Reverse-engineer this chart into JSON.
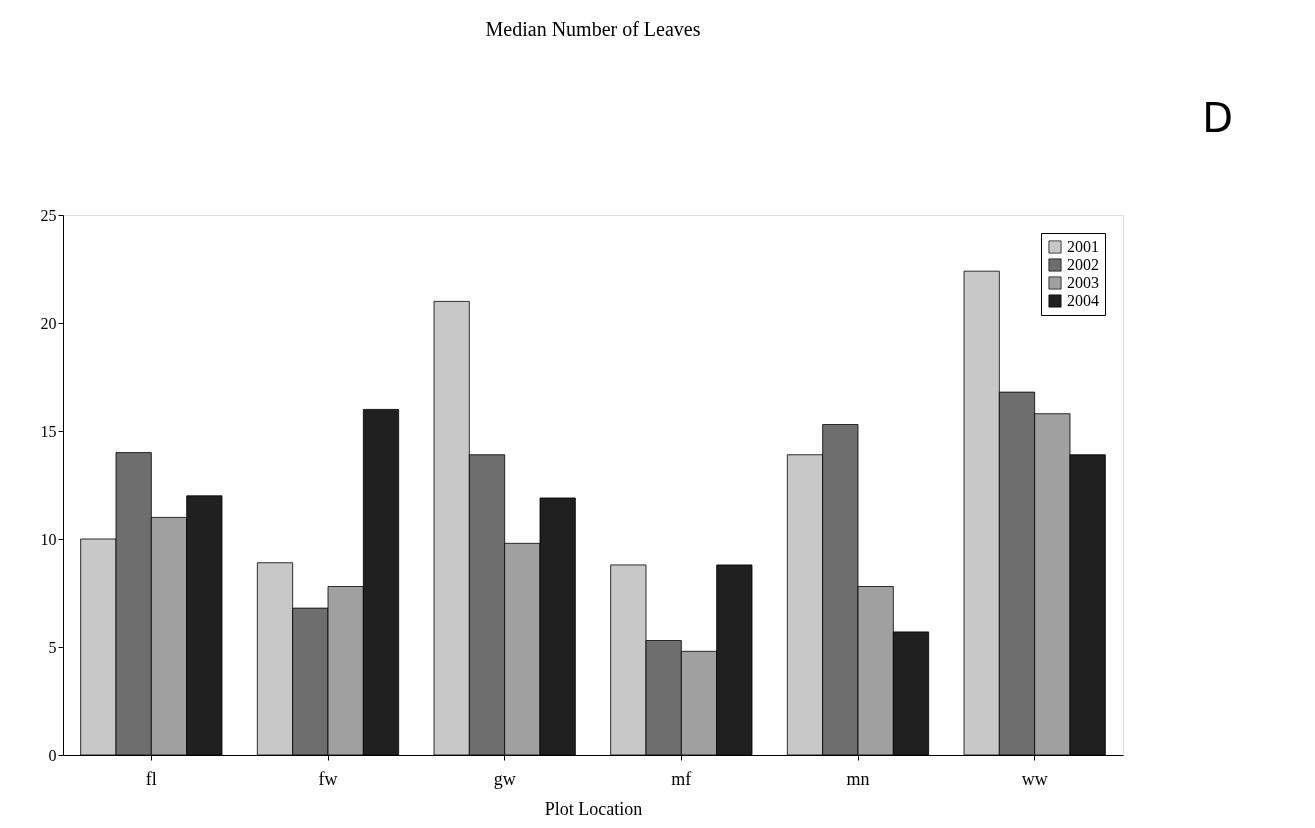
{
  "chart_data": {
    "type": "bar",
    "title": "Median Number of Leaves",
    "xlabel": "Plot Location",
    "annotations": [
      "D"
    ],
    "categories": [
      "fl",
      "fw",
      "gw",
      "mf",
      "mn",
      "ww"
    ],
    "series": [
      {
        "name": "2001",
        "color": "#c8c8c8",
        "values": [
          10,
          8.9,
          21,
          8.8,
          13.9,
          22.4
        ]
      },
      {
        "name": "2002",
        "color": "#6e6e6e",
        "values": [
          14,
          6.8,
          13.9,
          5.3,
          15.3,
          16.8
        ]
      },
      {
        "name": "2003",
        "color": "#a0a0a0",
        "values": [
          11,
          7.8,
          9.8,
          4.8,
          7.8,
          15.8
        ]
      },
      {
        "name": "2004",
        "color": "#202020",
        "values": [
          12,
          16,
          11.9,
          8.8,
          5.7,
          13.9
        ]
      }
    ],
    "ylim": [
      0,
      25
    ],
    "yticks": [
      0,
      5,
      10,
      15,
      20,
      25
    ],
    "grid": false,
    "legend": "top right"
  }
}
